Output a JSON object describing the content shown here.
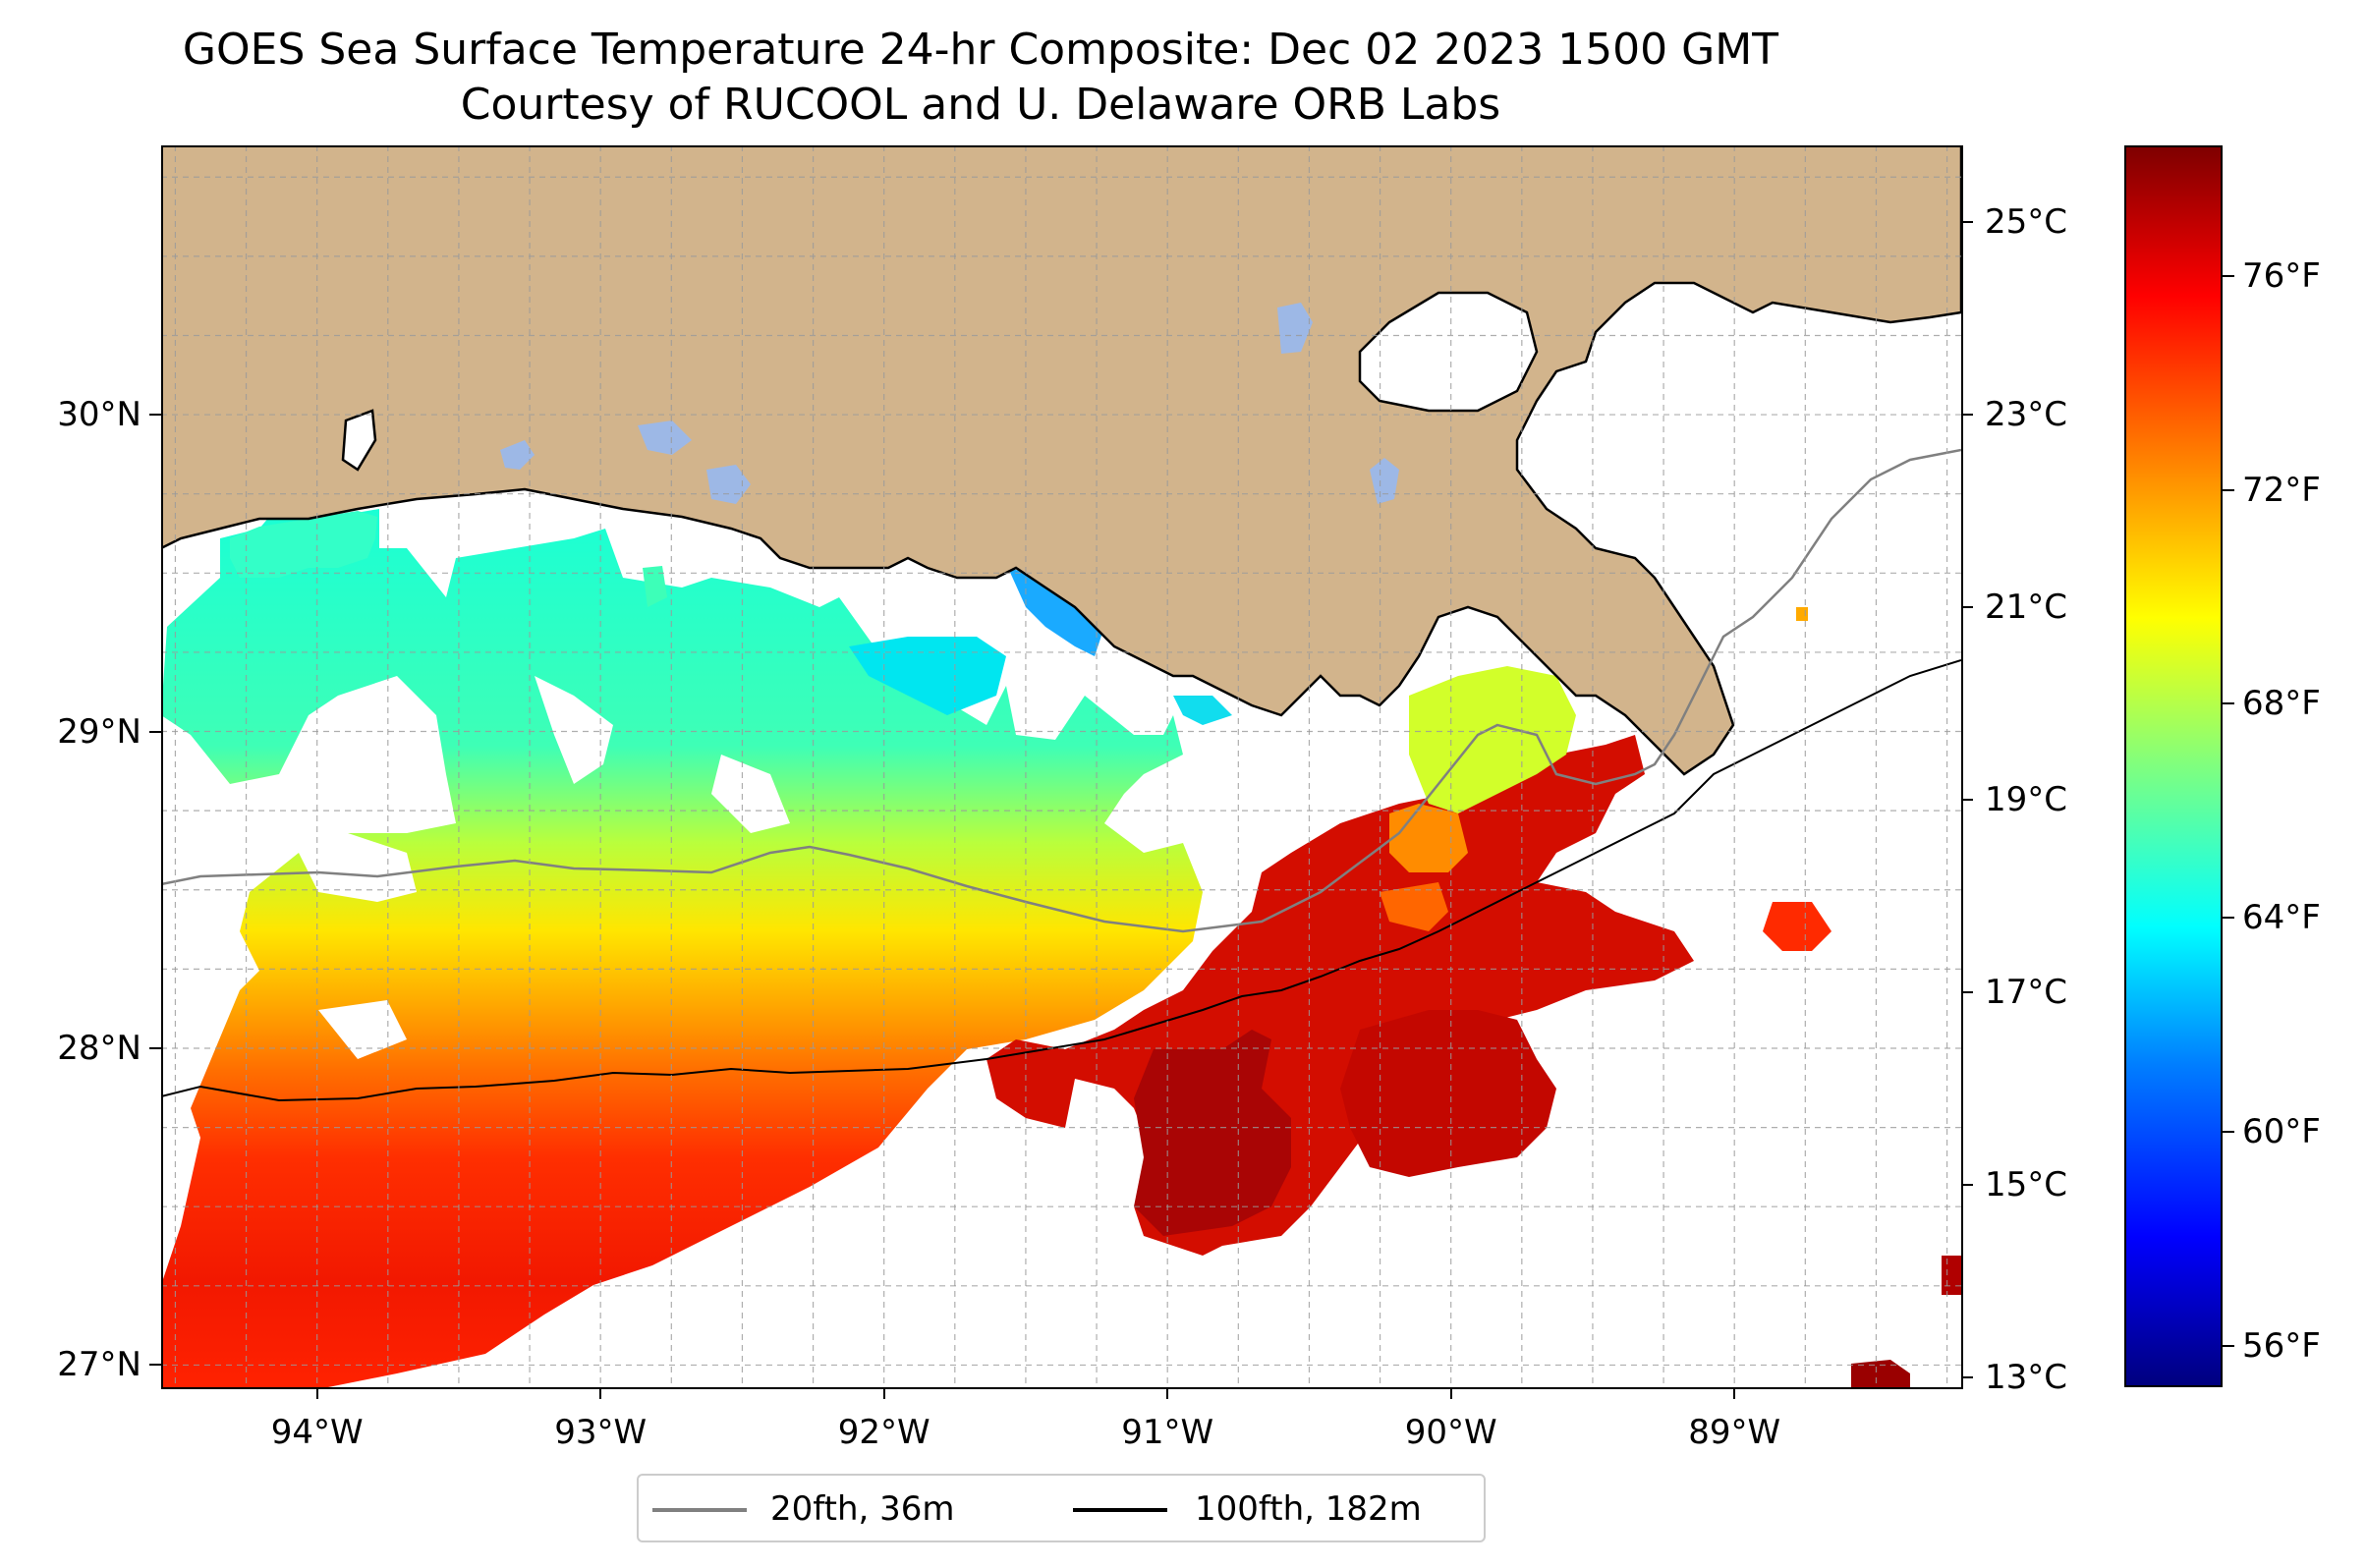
{
  "figure": {
    "title": "GOES Sea Surface Temperature 24-hr Composite: Dec 02 2023 1500 GMT",
    "subtitle": "Courtesy of RUCOOL and U. Delaware ORB Labs"
  },
  "map": {
    "extent": {
      "lon_min": -94.55,
      "lon_max": -88.2,
      "lat_min": 26.93,
      "lat_max": 30.85
    },
    "land_color": "#D2B48C",
    "coastline_color": "#000000",
    "gridlines": "dashed gray",
    "lon_ticks": [
      {
        "lon": -94,
        "label": "94°W"
      },
      {
        "lon": -93,
        "label": "93°W"
      },
      {
        "lon": -92,
        "label": "92°W"
      },
      {
        "lon": -91,
        "label": "91°W"
      },
      {
        "lon": -90,
        "label": "90°W"
      },
      {
        "lon": -89,
        "label": "89°W"
      }
    ],
    "lat_ticks": [
      {
        "lat": 30,
        "label": "30°N"
      },
      {
        "lat": 29,
        "label": "29°N"
      },
      {
        "lat": 28,
        "label": "28°N"
      },
      {
        "lat": 27,
        "label": "27°N"
      }
    ]
  },
  "colorbar": {
    "celsius_ticks": [
      {
        "value": 25,
        "label": "25°C"
      },
      {
        "value": 23,
        "label": "23°C"
      },
      {
        "value": 21,
        "label": "21°C"
      },
      {
        "value": 19,
        "label": "19°C"
      },
      {
        "value": 17,
        "label": "17°C"
      },
      {
        "value": 15,
        "label": "15°C"
      },
      {
        "value": 13,
        "label": "13°C"
      }
    ],
    "fahrenheit_ticks": [
      {
        "value": 76,
        "label": "76°F"
      },
      {
        "value": 72,
        "label": "72°F"
      },
      {
        "value": 68,
        "label": "68°F"
      },
      {
        "value": 64,
        "label": "64°F"
      },
      {
        "value": 60,
        "label": "60°F"
      },
      {
        "value": 56,
        "label": "56°F"
      }
    ],
    "range_c": [
      12.9,
      25.8
    ]
  },
  "legend": {
    "items": [
      {
        "label": "20fth, 36m",
        "color": "#808080"
      },
      {
        "label": "100fth, 182m",
        "color": "#000000"
      }
    ]
  }
}
